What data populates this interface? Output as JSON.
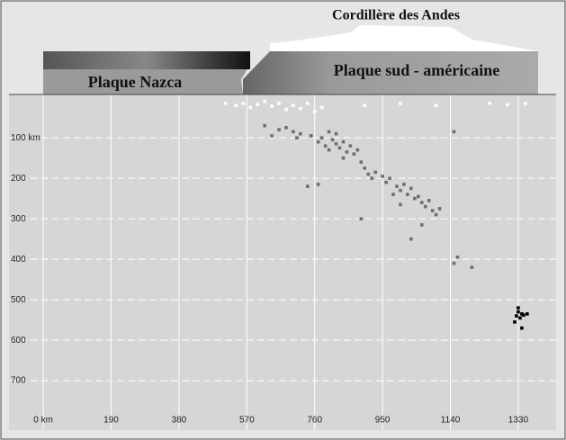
{
  "chart_data": {
    "type": "scatter",
    "annotations": {
      "range": "Cordillère des Andes",
      "ocean_plate": "Plaque Nazca",
      "continent_plate": "Plaque sud - américaine"
    },
    "xlim": [
      -96,
      1436
    ],
    "ylim": [
      822,
      -7
    ],
    "xticks": [
      {
        "value": 0,
        "label": "0 km"
      },
      190,
      380,
      570,
      760,
      950,
      1140,
      1330
    ],
    "yticks": [
      {
        "value": 100,
        "label": "100 km"
      },
      200,
      300,
      400,
      500,
      600,
      700
    ],
    "grid": true,
    "series": [
      {
        "color": "#ffffff",
        "x": [
          510,
          540,
          560,
          580,
          600,
          620,
          640,
          660,
          680,
          700,
          720,
          740,
          760,
          780,
          900,
          1000,
          1100,
          1250,
          1300,
          1350
        ],
        "values": [
          15,
          20,
          15,
          25,
          18,
          10,
          22,
          15,
          30,
          20,
          28,
          15,
          35,
          25,
          20,
          15,
          20,
          15,
          18,
          15
        ]
      },
      {
        "color": "#6e6e6e",
        "x": [
          620,
          640,
          660,
          680,
          700,
          710,
          720,
          750,
          770,
          780,
          790,
          800,
          810,
          820,
          830,
          840,
          850,
          860,
          870,
          820,
          800,
          840,
          880,
          890,
          900,
          910,
          920,
          930,
          950,
          960,
          970,
          990,
          1000,
          1010,
          1020,
          1030,
          1040,
          1050,
          1060,
          1070,
          1080,
          1090,
          1100,
          1110,
          1000,
          980,
          1150,
          770,
          740,
          890,
          1060,
          1030,
          1160,
          1150,
          1200
        ],
        "values": [
          70,
          95,
          80,
          75,
          85,
          100,
          90,
          95,
          110,
          100,
          120,
          130,
          105,
          115,
          125,
          110,
          135,
          120,
          140,
          90,
          85,
          150,
          130,
          160,
          175,
          190,
          200,
          185,
          195,
          210,
          200,
          220,
          230,
          215,
          240,
          225,
          250,
          245,
          260,
          270,
          255,
          280,
          290,
          275,
          265,
          240,
          85,
          215,
          220,
          300,
          315,
          350,
          395,
          410,
          420
        ]
      },
      {
        "color": "#000000",
        "x": [
          1330,
          1340,
          1325,
          1335,
          1320,
          1345,
          1330,
          1340,
          1355
        ],
        "values": [
          530,
          535,
          540,
          545,
          555,
          538,
          520,
          570,
          535
        ]
      }
    ]
  }
}
